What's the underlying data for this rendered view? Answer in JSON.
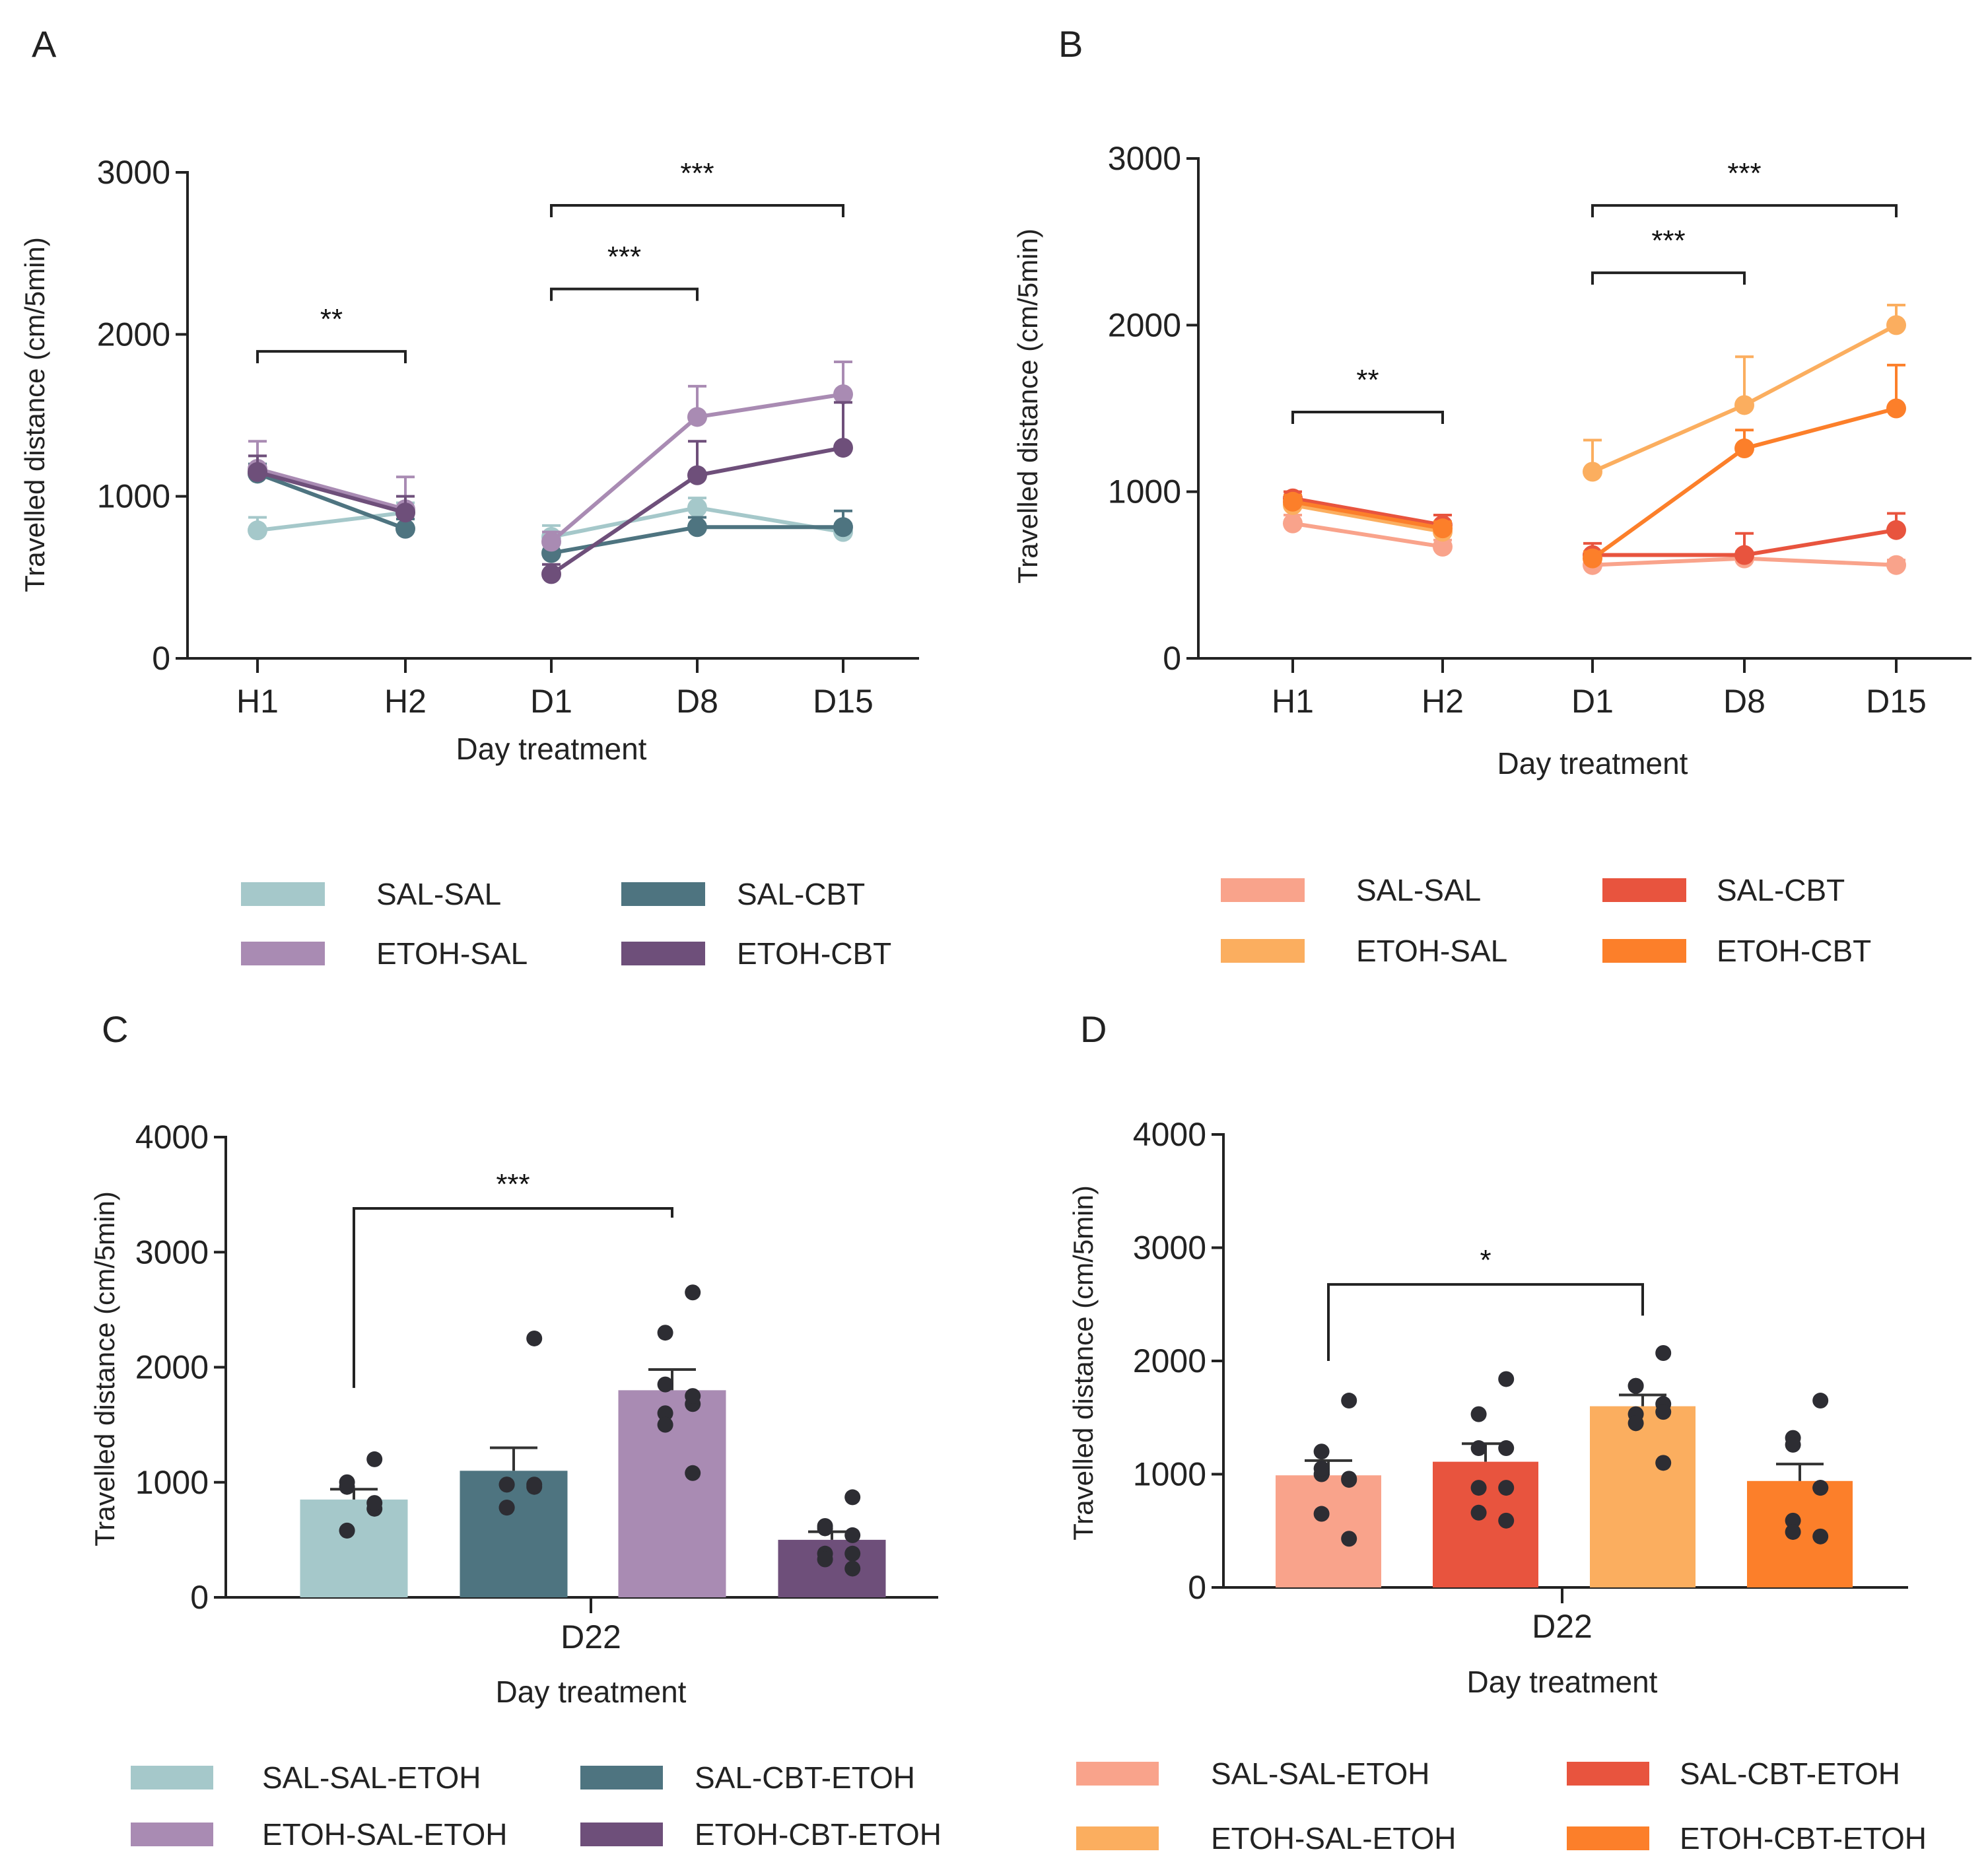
{
  "chart_data": [
    {
      "panel": "A",
      "type": "line",
      "categories": [
        "H1",
        "H2",
        "D1",
        "D8",
        "D15"
      ],
      "xlabel": "Day treatment",
      "ylabel": "Travelled distance (cm/5min)",
      "ylim": [
        0,
        3000
      ],
      "yticks": [
        0,
        1000,
        2000,
        3000
      ],
      "grid": false,
      "legend_position": "bottom",
      "series": [
        {
          "name": "SAL-SAL",
          "color": "#a5c8ca",
          "values": [
            790,
            900,
            750,
            930,
            780
          ],
          "sem": [
            80,
            60,
            70,
            60,
            50
          ]
        },
        {
          "name": "SAL-CBT",
          "color": "#4e7480",
          "values": [
            1140,
            800,
            650,
            810,
            810
          ],
          "sem": [
            60,
            60,
            60,
            60,
            100
          ]
        },
        {
          "name": "ETOH-SAL",
          "color": "#a98bb3",
          "values": [
            1170,
            920,
            720,
            1490,
            1630
          ],
          "sem": [
            170,
            200,
            60,
            190,
            200
          ]
        },
        {
          "name": "ETOH-CBT",
          "color": "#6e4f7a",
          "values": [
            1150,
            900,
            520,
            1130,
            1300
          ],
          "sem": [
            100,
            100,
            60,
            210,
            280
          ]
        }
      ],
      "annotations": [
        {
          "from": "H1",
          "to": "H2",
          "y": 1895,
          "label": "**"
        },
        {
          "from": "D1",
          "to": "D8",
          "y": 2280,
          "label": "***"
        },
        {
          "from": "D1",
          "to": "D15",
          "y": 2796,
          "label": "***"
        }
      ]
    },
    {
      "panel": "B",
      "type": "line",
      "categories": [
        "H1",
        "H2",
        "D1",
        "D8",
        "D15"
      ],
      "xlabel": "Day treatment",
      "ylabel": "Travelled distance (cm/5min)",
      "ylim": [
        0,
        3000
      ],
      "yticks": [
        0,
        1000,
        2000,
        3000
      ],
      "grid": false,
      "legend_position": "bottom",
      "series": [
        {
          "name": "SAL-SAL",
          "color": "#f9a38b",
          "values": [
            810,
            670,
            560,
            600,
            560
          ],
          "sem": [
            50,
            40,
            40,
            40,
            30
          ]
        },
        {
          "name": "SAL-CBT",
          "color": "#e8543e",
          "values": [
            960,
            800,
            620,
            620,
            770
          ],
          "sem": [
            40,
            60,
            70,
            130,
            100
          ]
        },
        {
          "name": "ETOH-SAL",
          "color": "#fbae5f",
          "values": [
            920,
            760,
            1120,
            1520,
            2000
          ],
          "sem": [
            40,
            40,
            190,
            290,
            120
          ]
        },
        {
          "name": "ETOH-CBT",
          "color": "#fc7f2a",
          "values": [
            940,
            780,
            600,
            1260,
            1500
          ],
          "sem": [
            40,
            40,
            40,
            110,
            260
          ]
        }
      ],
      "annotations": [
        {
          "from": "H1",
          "to": "H2",
          "y": 1478,
          "label": "**"
        },
        {
          "from": "D1",
          "to": "D8",
          "y": 2314,
          "label": "***"
        },
        {
          "from": "D1",
          "to": "D15",
          "y": 2718,
          "label": "***"
        }
      ]
    },
    {
      "panel": "C",
      "type": "bar",
      "categories": [
        "D22"
      ],
      "xlabel": "Day treatment",
      "ylabel": "Travelled distance (cm/5min)",
      "ylim": [
        0,
        4000
      ],
      "yticks": [
        0,
        1000,
        2000,
        3000,
        4000
      ],
      "grid": false,
      "legend_position": "bottom",
      "series": [
        {
          "name": "SAL-SAL-ETOH",
          "color": "#a5c8ca",
          "value": 850,
          "sem": 90,
          "points": [
            1200,
            960,
            1000,
            770,
            820,
            580,
            580
          ]
        },
        {
          "name": "SAL-CBT-ETOH",
          "color": "#4e7480",
          "value": 1100,
          "sem": 200,
          "points": [
            2250,
            980,
            980,
            960,
            980,
            780,
            780
          ]
        },
        {
          "name": "ETOH-SAL-ETOH",
          "color": "#a98bb3",
          "value": 1800,
          "sem": 180,
          "points": [
            2650,
            2300,
            1850,
            1680,
            1750,
            1600,
            1500,
            1080
          ]
        },
        {
          "name": "ETOH-CBT-ETOH",
          "color": "#6e4f7a",
          "value": 500,
          "sem": 70,
          "points": [
            870,
            600,
            620,
            540,
            380,
            380,
            330,
            250
          ]
        }
      ],
      "annotations": [
        {
          "from": 0,
          "to": 2,
          "y": 3380,
          "left_end": 1820,
          "right_end": 3300,
          "label": "***"
        }
      ]
    },
    {
      "panel": "D",
      "type": "bar",
      "categories": [
        "D22"
      ],
      "xlabel": "Day treatment",
      "ylabel": "Travelled distance (cm/5min)",
      "ylim": [
        0,
        4000
      ],
      "yticks": [
        0,
        1000,
        2000,
        3000,
        4000
      ],
      "grid": false,
      "legend_position": "bottom",
      "series": [
        {
          "name": "SAL-SAL-ETOH",
          "color": "#f9a38b",
          "value": 990,
          "sem": 130,
          "points": [
            1650,
            1200,
            1000,
            960,
            950,
            1050,
            650,
            430
          ]
        },
        {
          "name": "SAL-CBT-ETOH",
          "color": "#e8543e",
          "value": 1110,
          "sem": 160,
          "points": [
            1840,
            1530,
            1230,
            1230,
            880,
            880,
            660,
            590
          ]
        },
        {
          "name": "ETOH-SAL-ETOH",
          "color": "#fbae5f",
          "value": 1600,
          "sem": 100,
          "points": [
            2070,
            1780,
            1780,
            1620,
            1550,
            1530,
            1450,
            1100
          ]
        },
        {
          "name": "ETOH-CBT-ETOH",
          "color": "#fc7f2a",
          "value": 940,
          "sem": 150,
          "points": [
            1650,
            1320,
            1260,
            880,
            880,
            590,
            490,
            450
          ]
        }
      ],
      "annotations": [
        {
          "from": 0,
          "to": 2,
          "y": 2676,
          "left_end": 2000,
          "right_end": 2400,
          "label": "*"
        }
      ]
    }
  ]
}
